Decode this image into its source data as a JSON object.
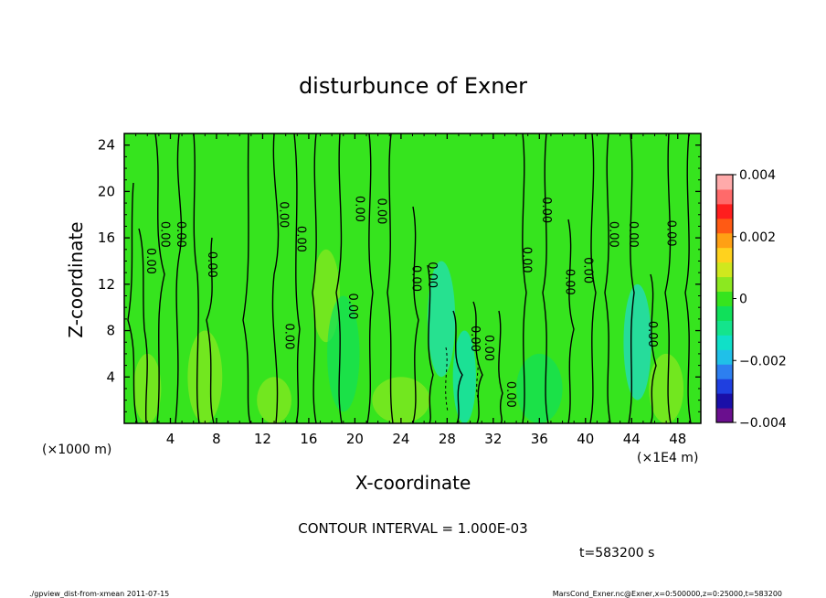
{
  "chart_data": {
    "type": "heatmap",
    "title": "disturbunce of Exner",
    "xlabel": "X-coordinate",
    "ylabel": "Z-coordinate",
    "x_unit_left": "(×1000 m)",
    "x_unit_right": "(×1E4 m)",
    "xlim": [
      0,
      50
    ],
    "ylim": [
      0,
      25
    ],
    "xticks": [
      "4",
      "8",
      "12",
      "16",
      "20",
      "24",
      "28",
      "32",
      "36",
      "40",
      "44",
      "48"
    ],
    "yticks": [
      "4",
      "8",
      "12",
      "16",
      "20",
      "24"
    ],
    "colorbar": {
      "range": [
        -0.004,
        0.004
      ],
      "ticks": [
        "0.004",
        "0.002",
        "0",
        "−0.002",
        "−0.004"
      ],
      "colors": [
        "#6a0f8e",
        "#1a0fa8",
        "#1f3fe0",
        "#2d7ff0",
        "#20c0e8",
        "#10e0c8",
        "#14e48c",
        "#10e05a",
        "#36e41e",
        "#8ce820",
        "#d0e81e",
        "#ffd21e",
        "#ffa014",
        "#ff5a14",
        "#ff1e1e",
        "#ff6a6a",
        "#ffaaaa"
      ]
    },
    "contour_interval_text": "CONTOUR INTERVAL = 1.000E-03",
    "contour_labels": [
      {
        "x": 2,
        "y": 14,
        "text": "0.00"
      },
      {
        "x": 3.2,
        "y": 16.3,
        "text": "0.00"
      },
      {
        "x": 4.6,
        "y": 16.3,
        "text": "0.00"
      },
      {
        "x": 7.3,
        "y": 13.7,
        "text": "0.00"
      },
      {
        "x": 13.5,
        "y": 18.0,
        "text": "0.00"
      },
      {
        "x": 15.0,
        "y": 15.9,
        "text": "0.00"
      },
      {
        "x": 14.0,
        "y": 7.5,
        "text": "0.00"
      },
      {
        "x": 19.5,
        "y": 10.1,
        "text": "0.00"
      },
      {
        "x": 20.1,
        "y": 18.5,
        "text": "0.00"
      },
      {
        "x": 22.0,
        "y": 18.3,
        "text": "0.00"
      },
      {
        "x": 25.0,
        "y": 12.5,
        "text": "0.00"
      },
      {
        "x": 26.4,
        "y": 12.8,
        "text": "0.00"
      },
      {
        "x": 30.1,
        "y": 7.3,
        "text": "0.00"
      },
      {
        "x": 31.3,
        "y": 6.5,
        "text": "0.00"
      },
      {
        "x": 33.2,
        "y": 2.5,
        "text": "0.00"
      },
      {
        "x": 34.6,
        "y": 14.1,
        "text": "0.00"
      },
      {
        "x": 36.3,
        "y": 18.4,
        "text": "0.00"
      },
      {
        "x": 38.3,
        "y": 12.2,
        "text": "0.00"
      },
      {
        "x": 39.9,
        "y": 13.2,
        "text": "0.00"
      },
      {
        "x": 42.1,
        "y": 16.3,
        "text": "0.00"
      },
      {
        "x": 43.8,
        "y": 16.3,
        "text": "0.00"
      },
      {
        "x": 47.1,
        "y": 16.4,
        "text": "0.00"
      },
      {
        "x": 45.5,
        "y": 7.7,
        "text": "0.00"
      }
    ]
  },
  "time_label": "t=583200 s",
  "footer_left": "./gpview_dist-from-xmean  2011-07-15",
  "footer_right": "MarsCond_Exner.nc@Exner,x=0:500000,z=0:25000,t=583200"
}
